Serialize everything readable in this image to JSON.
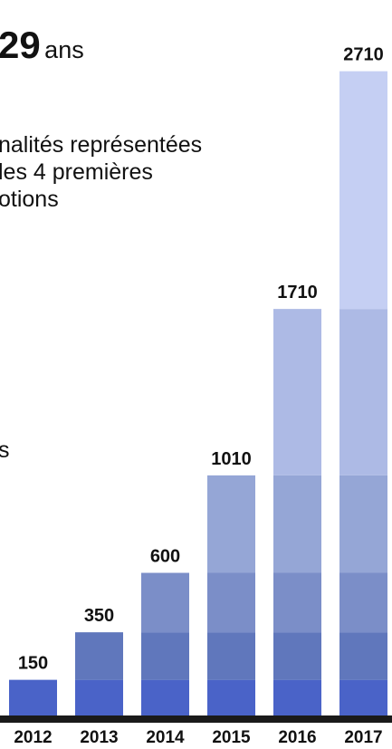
{
  "headline": {
    "number": "29",
    "unit": "ans"
  },
  "description": {
    "lines": [
      "nalités représentées",
      "les 4 premières",
      "otions"
    ]
  },
  "side_fragment": "s",
  "chart_data": {
    "type": "bar",
    "stacked": true,
    "categories": [
      "2012",
      "2013",
      "2014",
      "2015",
      "2016",
      "2017"
    ],
    "totals": [
      150,
      350,
      600,
      1010,
      1710,
      2710
    ],
    "value_labels": [
      "150",
      "350",
      "600",
      "1010",
      "1710",
      "2710"
    ],
    "series": [
      {
        "values": [
          150,
          150,
          150,
          150,
          150,
          150
        ]
      },
      {
        "values": [
          0,
          200,
          200,
          200,
          200,
          200
        ]
      },
      {
        "values": [
          0,
          0,
          250,
          250,
          250,
          250
        ]
      },
      {
        "values": [
          0,
          0,
          0,
          410,
          410,
          410
        ]
      },
      {
        "values": [
          0,
          0,
          0,
          0,
          700,
          700
        ]
      },
      {
        "values": [
          0,
          0,
          0,
          0,
          0,
          1000
        ]
      }
    ],
    "colors": [
      "#4a63c8",
      "#6077bc",
      "#7b8ec8",
      "#95a6d6",
      "#adbae5",
      "#c5cff3"
    ],
    "baseline_color": "#1a1a1a",
    "ylim": [
      0,
      2710
    ],
    "grid": false,
    "legend": "none"
  }
}
